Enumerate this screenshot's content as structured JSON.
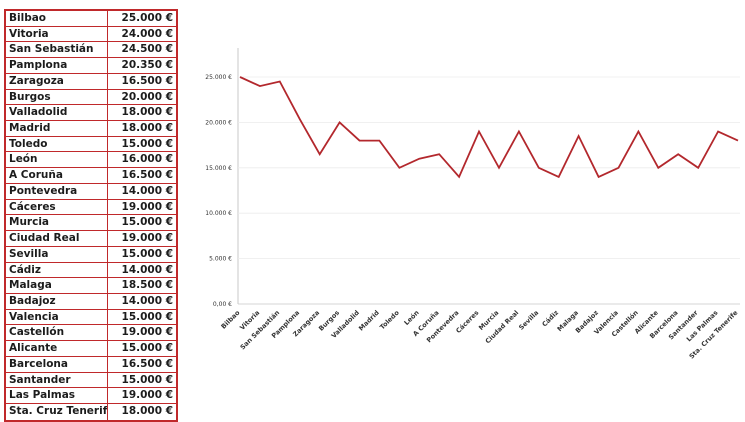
{
  "table": {
    "rows": [
      {
        "city": "Bilbao",
        "price": "25.000 €"
      },
      {
        "city": "Vitoria",
        "price": "24.000 €"
      },
      {
        "city": "San Sebastián",
        "price": "24.500 €"
      },
      {
        "city": "Pamplona",
        "price": "20.350 €"
      },
      {
        "city": "Zaragoza",
        "price": "16.500 €"
      },
      {
        "city": "Burgos",
        "price": "20.000 €"
      },
      {
        "city": "Valladolid",
        "price": "18.000 €"
      },
      {
        "city": "Madrid",
        "price": "18.000 €"
      },
      {
        "city": "Toledo",
        "price": "15.000 €"
      },
      {
        "city": "León",
        "price": "16.000 €"
      },
      {
        "city": "A Coruña",
        "price": "16.500 €"
      },
      {
        "city": "Pontevedra",
        "price": "14.000 €"
      },
      {
        "city": "Cáceres",
        "price": "19.000 €"
      },
      {
        "city": "Murcia",
        "price": "15.000 €"
      },
      {
        "city": "Ciudad Real",
        "price": "19.000 €"
      },
      {
        "city": "Sevilla",
        "price": "15.000 €"
      },
      {
        "city": "Cádiz",
        "price": "14.000 €"
      },
      {
        "city": "Malaga",
        "price": "18.500 €"
      },
      {
        "city": "Badajoz",
        "price": "14.000 €"
      },
      {
        "city": "Valencia",
        "price": "15.000 €"
      },
      {
        "city": "Castellón",
        "price": "19.000 €"
      },
      {
        "city": "Alicante",
        "price": "15.000 €"
      },
      {
        "city": "Barcelona",
        "price": "16.500 €"
      },
      {
        "city": "Santander",
        "price": "15.000 €"
      },
      {
        "city": "Las Palmas",
        "price": "19.000 €"
      },
      {
        "city": "Sta. Cruz Tenerife",
        "price": "18.000 €"
      }
    ]
  },
  "chart_data": {
    "type": "line",
    "categories": [
      "Bilbao",
      "Vitoria",
      "San Sebastián",
      "Pamplona",
      "Zaragoza",
      "Burgos",
      "Valladolid",
      "Madrid",
      "Toledo",
      "León",
      "A Coruña",
      "Pontevedra",
      "Cáceres",
      "Murcia",
      "Ciudad Real",
      "Sevilla",
      "Cádiz",
      "Malaga",
      "Badajoz",
      "Valencia",
      "Castellón",
      "Alicante",
      "Barcelona",
      "Santander",
      "Las Palmas",
      "Sta. Cruz Tenerife"
    ],
    "values": [
      25000,
      24000,
      24500,
      20350,
      16500,
      20000,
      18000,
      18000,
      15000,
      16000,
      16500,
      14000,
      19000,
      15000,
      19000,
      15000,
      14000,
      18500,
      14000,
      15000,
      19000,
      15000,
      16500,
      15000,
      19000,
      18000
    ],
    "yticks": [
      "0,00 €",
      "5.000 €",
      "10.000 €",
      "15.000 €",
      "20.000 €",
      "25.000 €"
    ],
    "ylim": [
      0,
      25000
    ],
    "line_color": "#b3282d",
    "grid": true
  }
}
